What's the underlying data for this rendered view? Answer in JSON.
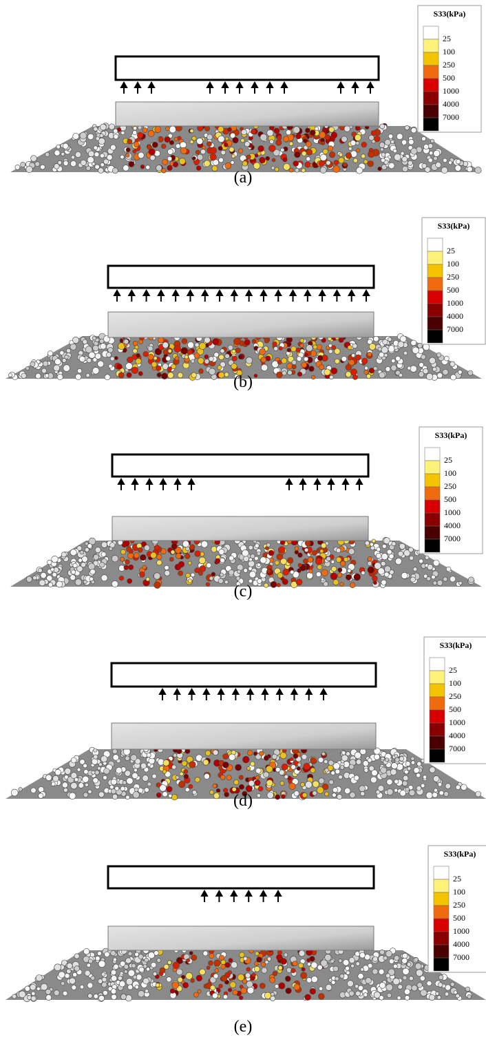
{
  "panels": [
    {
      "label": "(a)",
      "legend": {
        "title": "S33(kPa)",
        "levels": [
          25,
          100,
          250,
          500,
          1000,
          4000,
          7000
        ]
      }
    },
    {
      "label": "(b)",
      "legend": {
        "title": "S33(kPa)",
        "levels": [
          25,
          100,
          250,
          500,
          1000,
          4000,
          7000
        ]
      }
    },
    {
      "label": "(c)",
      "legend": {
        "title": "S33(kPa)",
        "levels": [
          25,
          100,
          250,
          500,
          1000,
          4000,
          7000
        ]
      }
    },
    {
      "label": "(d)",
      "legend": {
        "title": "S33(kPa)",
        "levels": [
          25,
          100,
          250,
          500,
          1000,
          4000,
          7000
        ]
      }
    },
    {
      "label": "(e)",
      "legend": {
        "title": "S33(kPa)",
        "levels": [
          25,
          100,
          250,
          500,
          1000,
          4000,
          7000
        ]
      }
    }
  ]
}
